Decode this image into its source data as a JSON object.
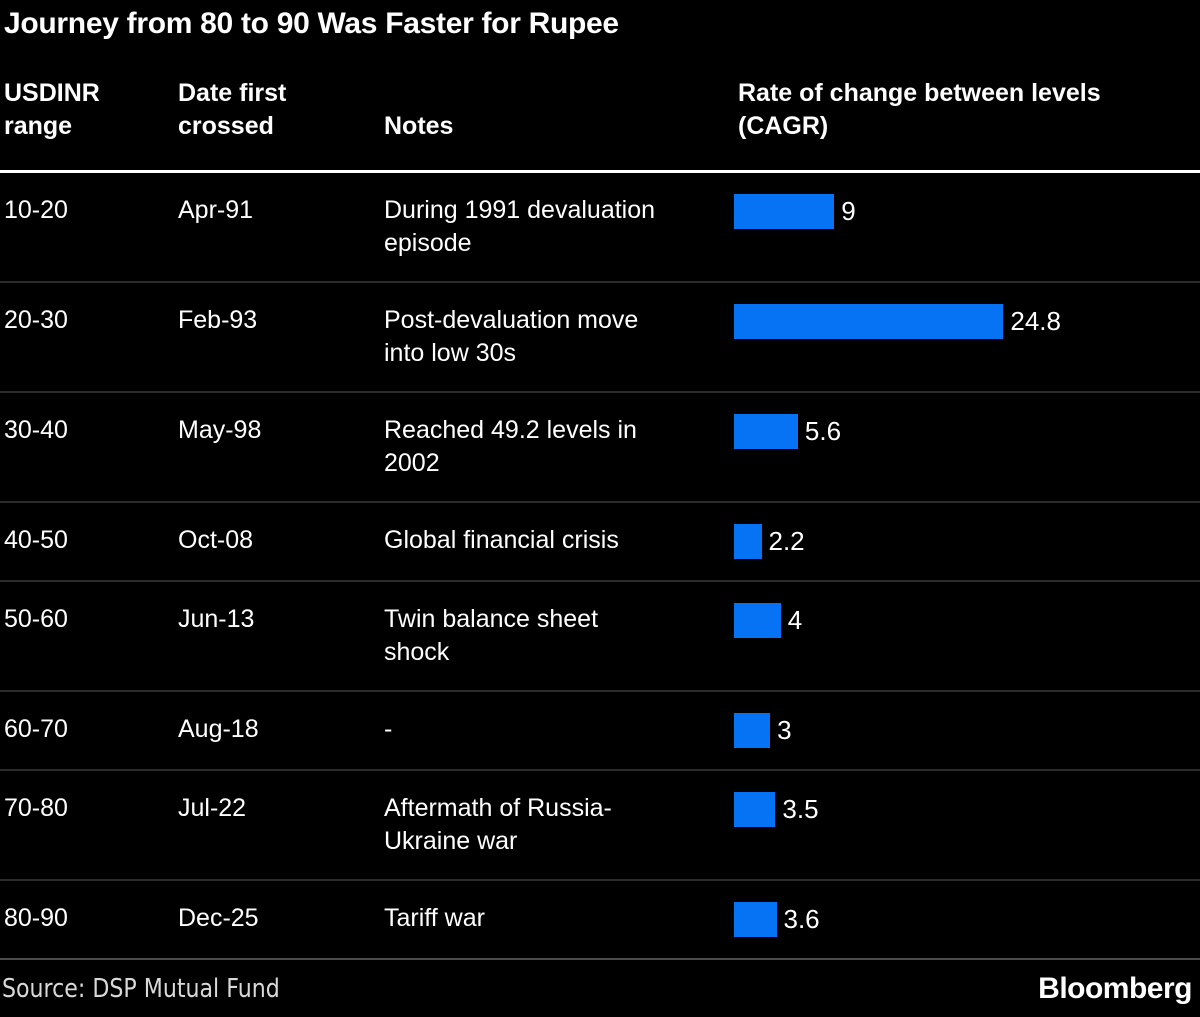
{
  "title": "Journey from 80 to 90 Was Faster for Rupee",
  "table": {
    "columns": [
      "USDINR range",
      "Date first crossed",
      "Notes",
      "Rate of change between levels (CAGR)"
    ],
    "rows": [
      {
        "range": "10-20",
        "date": "Apr-91",
        "note": "During 1991 devaluation episode",
        "value": 9,
        "value_label": "9"
      },
      {
        "range": "20-30",
        "date": "Feb-93",
        "note": "Post-devaluation move into low 30s",
        "value": 24.8,
        "value_label": "24.8"
      },
      {
        "range": "30-40",
        "date": "May-98",
        "note": "Reached 49.2 levels in 2002",
        "value": 5.6,
        "value_label": "5.6"
      },
      {
        "range": "40-50",
        "date": "Oct-08",
        "note": "Global financial crisis",
        "value": 2.2,
        "value_label": "2.2"
      },
      {
        "range": "50-60",
        "date": "Jun-13",
        "note": "Twin balance sheet shock",
        "value": 4,
        "value_label": "4"
      },
      {
        "range": "60-70",
        "date": "Aug-18",
        "note": "-",
        "value": 3,
        "value_label": "3"
      },
      {
        "range": "70-80",
        "date": "Jul-22",
        "note": "Aftermath of Russia-Ukraine war",
        "value": 3.5,
        "value_label": "3.5"
      },
      {
        "range": "80-90",
        "date": "Dec-25",
        "note": "Tariff war",
        "value": 3.6,
        "value_label": "3.6"
      }
    ]
  },
  "chart_data": {
    "type": "bar",
    "orientation": "horizontal",
    "title": "Journey from 80 to 90 Was Faster for Rupee",
    "series_label": "Rate of change between levels (CAGR)",
    "categories": [
      "10-20",
      "20-30",
      "30-40",
      "40-50",
      "50-60",
      "60-70",
      "70-80",
      "80-90"
    ],
    "values": [
      9,
      24.8,
      5.6,
      2.2,
      4,
      3,
      3.5,
      3.6
    ],
    "value_labels": [
      "9",
      "24.8",
      "5.6",
      "2.2",
      "4",
      "3",
      "3.5",
      "3.6"
    ],
    "dates_first_crossed": [
      "Apr-91",
      "Feb-93",
      "May-98",
      "Oct-08",
      "Jun-13",
      "Aug-18",
      "Jul-22",
      "Dec-25"
    ],
    "notes": [
      "During 1991 devaluation episode",
      "Post-devaluation move into low 30s",
      "Reached 49.2 levels in 2002",
      "Global financial crisis",
      "Twin balance sheet shock",
      "-",
      "Aftermath of Russia-Ukraine war",
      "Tariff war"
    ],
    "xlim": [
      0,
      25
    ],
    "grid": false,
    "legend": false
  },
  "footer": {
    "source": "Source: DSP Mutual Fund",
    "brand": "Bloomberg"
  },
  "colors": {
    "background": "#000000",
    "text": "#ffffff",
    "bar": "#0673f5",
    "row_divider": "#2b2b2b",
    "header_rule": "#ffffff",
    "footer_rule": "#4d4d4d",
    "source_text": "#d9d9d9"
  }
}
